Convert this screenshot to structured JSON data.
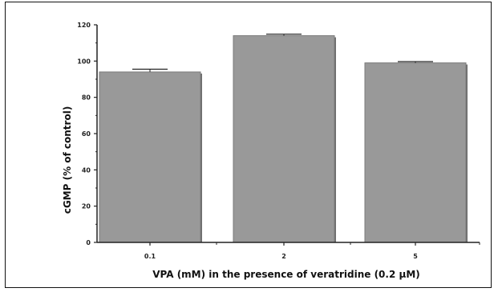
{
  "chart_data": {
    "type": "bar",
    "categories": [
      "0.1",
      "2",
      "5"
    ],
    "values": [
      94,
      114,
      99
    ],
    "errors": [
      1.5,
      0.8,
      0.7
    ],
    "ylim": [
      0,
      120
    ],
    "yticks": [
      "0",
      "20",
      "40",
      "60",
      "80",
      "100",
      "120"
    ],
    "xlabel": "VPA (mM) in the presence of veratridine (0.2 μM)",
    "ylabel": "cGMP (% of control)",
    "bar_color": "#999999",
    "grid": false
  }
}
